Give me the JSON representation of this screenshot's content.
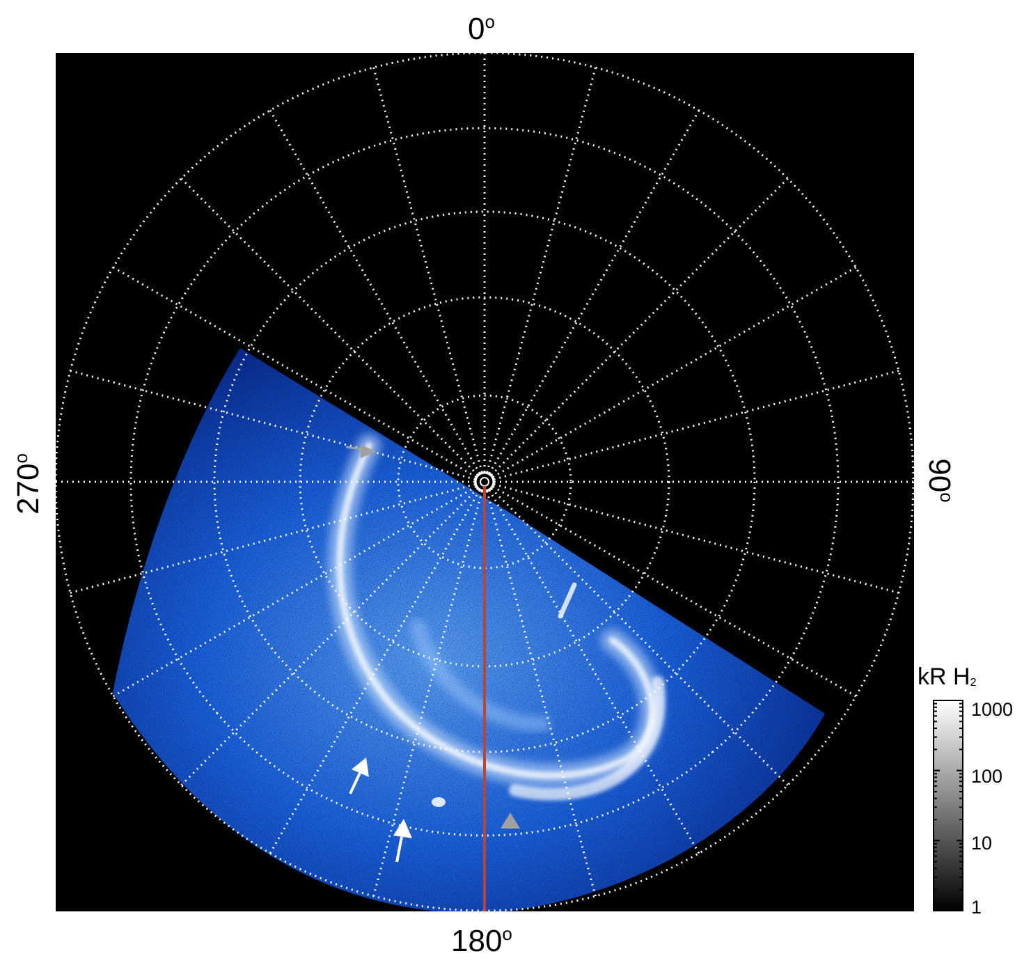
{
  "image": {
    "description_kind": "polar projection of auroral emission",
    "colormap": [
      "#000000",
      "#0a1f6e",
      "#0a4fd0",
      "#2f86ff",
      "#8fc0ff",
      "#ffffff"
    ]
  },
  "axes": {
    "top": "0",
    "right": "90",
    "bottom": "180",
    "left": "270",
    "degree_symbol": "o"
  },
  "colorbar": {
    "title": "kR H",
    "subscript": "2",
    "ticks": [
      "1000",
      "100",
      "10",
      "1"
    ]
  },
  "colors": {
    "grid": "#ffffff",
    "meridian_line": "#c8402a",
    "arrow_white": "#ffffff",
    "arrow_gray": "#a0a0a0"
  }
}
